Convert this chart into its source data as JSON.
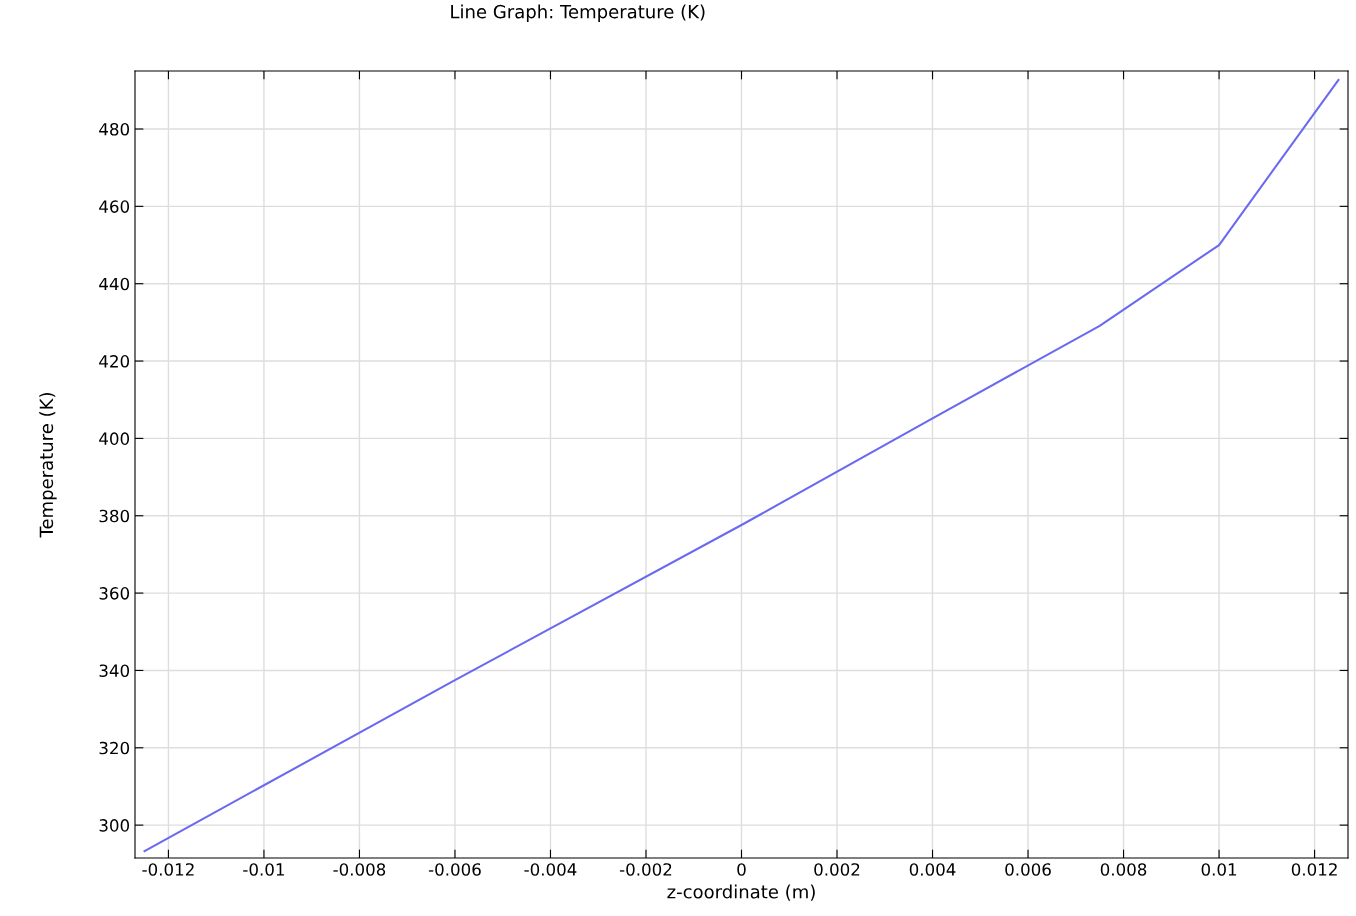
{
  "chart_data": {
    "type": "line",
    "title": "Line Graph: Temperature (K)",
    "xlabel": "z-coordinate (m)",
    "ylabel": "Temperature (K)",
    "x": [
      -0.0125,
      -0.006,
      0,
      0.004,
      0.0075,
      0.01,
      0.0125
    ],
    "series": [
      {
        "color": "#6a6af0",
        "values": [
          293.3,
          337.5,
          377.6,
          405.2,
          429.1,
          450.0,
          492.7
        ]
      }
    ],
    "xlim": [
      -0.0127,
      0.0127
    ],
    "xticks": [
      -0.012,
      -0.01,
      -0.008,
      -0.006,
      -0.004,
      -0.002,
      0,
      0.002,
      0.004,
      0.006,
      0.008,
      0.01,
      0.012
    ],
    "ylim": [
      291.5,
      495
    ],
    "yticks": [
      300,
      320,
      340,
      360,
      380,
      400,
      420,
      440,
      460,
      480
    ],
    "grid": true,
    "legend": false,
    "marker": "none",
    "line_style": "solid"
  }
}
